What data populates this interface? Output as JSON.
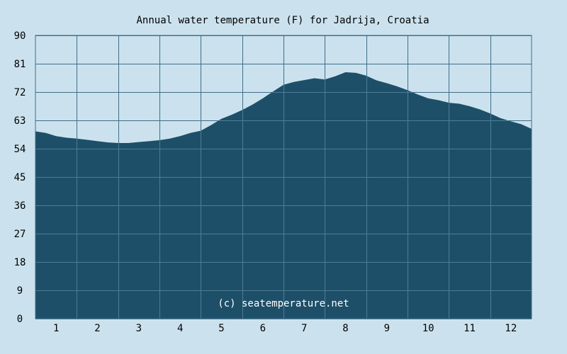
{
  "colors": {
    "background": "#cbe2ee",
    "area_fill": "#1e4f68",
    "grid": "#3f6d88",
    "grid_over_area": "#4f7c96",
    "text": "#000000",
    "watermark": "#ffffff"
  },
  "chart_data": {
    "type": "area",
    "title": "Annual water temperature (F) for Jadrija, Croatia",
    "watermark": "(c) seatemperature.net",
    "xlabel": "",
    "ylabel": "",
    "x_tick_labels": [
      "1",
      "2",
      "3",
      "4",
      "5",
      "6",
      "7",
      "8",
      "9",
      "10",
      "11",
      "12"
    ],
    "y_tick_labels": [
      "0",
      "9",
      "18",
      "27",
      "36",
      "45",
      "54",
      "63",
      "72",
      "81",
      "90"
    ],
    "ylim": [
      0,
      90
    ],
    "xlim": [
      0.5,
      12.5
    ],
    "grid": true,
    "legend": "none",
    "series": [
      {
        "x": [
          0.5,
          0.75,
          1.0,
          1.25,
          1.5,
          1.75,
          2.0,
          2.25,
          2.5,
          2.75,
          3.0,
          3.25,
          3.5,
          3.75,
          4.0,
          4.25,
          4.5,
          4.75,
          5.0,
          5.25,
          5.5,
          5.75,
          6.0,
          6.25,
          6.5,
          6.75,
          7.0,
          7.25,
          7.5,
          7.75,
          8.0,
          8.25,
          8.5,
          8.75,
          9.0,
          9.25,
          9.5,
          9.75,
          10.0,
          10.25,
          10.5,
          10.75,
          11.0,
          11.25,
          11.5,
          11.75,
          12.0,
          12.25,
          12.5
        ],
        "values": [
          59.5,
          59.0,
          58.0,
          57.5,
          57.2,
          56.8,
          56.4,
          56.0,
          55.8,
          55.8,
          56.1,
          56.4,
          56.7,
          57.2,
          58.0,
          59.0,
          59.7,
          61.5,
          63.5,
          64.8,
          66.3,
          68.0,
          70.0,
          72.2,
          74.3,
          75.2,
          75.8,
          76.4,
          76.0,
          77.0,
          78.3,
          78.1,
          77.2,
          75.7,
          74.8,
          73.8,
          72.6,
          71.2,
          70.0,
          69.4,
          68.6,
          68.3,
          67.5,
          66.5,
          65.2,
          63.7,
          62.7,
          61.8,
          60.3
        ]
      }
    ]
  }
}
